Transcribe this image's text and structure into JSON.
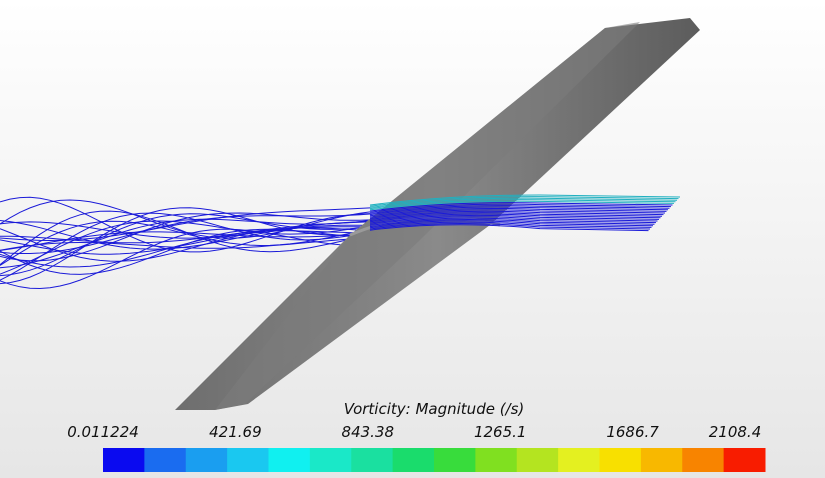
{
  "legend": {
    "title": "Vorticity: Magnitude (/s)",
    "labels": [
      "0.011224",
      "421.69",
      "843.38",
      "1265.1",
      "1686.7",
      "2108.4"
    ],
    "colors": [
      "#0a0af0",
      "#1a6cf0",
      "#1a9ef0",
      "#1ac8f0",
      "#10f0f0",
      "#1ae8c8",
      "#1ae0a0",
      "#1adc6c",
      "#38dc3c",
      "#80e020",
      "#b4e420",
      "#e4f020",
      "#f8e000",
      "#f8b800",
      "#f88400",
      "#f81c00"
    ]
  }
}
